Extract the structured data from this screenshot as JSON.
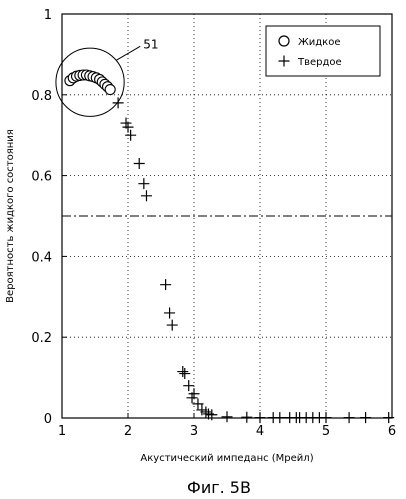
{
  "chart_data": {
    "type": "scatter",
    "figure_caption": "Фиг. 5B",
    "xlabel": "Акустический импеданс (Мрейл)",
    "ylabel": "Вероятность жидкого состояния",
    "xlim": [
      1,
      6
    ],
    "ylim": [
      0,
      1
    ],
    "x_ticks": [
      1,
      2,
      3,
      4,
      5,
      6
    ],
    "y_ticks": [
      0,
      0.2,
      0.4,
      0.6,
      0.8,
      1
    ],
    "x_tick_labels": [
      "1",
      "2",
      "3",
      "4",
      "5",
      "6"
    ],
    "y_tick_labels": [
      "0",
      "0.2",
      "0.4",
      "0.6",
      "0.8",
      "1"
    ],
    "grid": true,
    "legend_position": "top-right",
    "threshold_line": {
      "y": 0.5,
      "style": "dash-dot"
    },
    "annotation": {
      "label": "51",
      "target": "Жидкое"
    },
    "series": [
      {
        "name": "Жидкое",
        "marker": "circle",
        "points": [
          [
            1.12,
            0.835
          ],
          [
            1.17,
            0.842
          ],
          [
            1.22,
            0.846
          ],
          [
            1.27,
            0.848
          ],
          [
            1.32,
            0.849
          ],
          [
            1.37,
            0.849
          ],
          [
            1.42,
            0.847
          ],
          [
            1.47,
            0.845
          ],
          [
            1.52,
            0.842
          ],
          [
            1.57,
            0.838
          ],
          [
            1.61,
            0.832
          ],
          [
            1.65,
            0.826
          ],
          [
            1.69,
            0.82
          ],
          [
            1.73,
            0.813
          ]
        ]
      },
      {
        "name": "Твердое",
        "marker": "plus",
        "points": [
          [
            1.85,
            0.78
          ],
          [
            1.97,
            0.73
          ],
          [
            2.0,
            0.72
          ],
          [
            2.04,
            0.7
          ],
          [
            2.17,
            0.63
          ],
          [
            2.24,
            0.58
          ],
          [
            2.28,
            0.55
          ],
          [
            2.57,
            0.33
          ],
          [
            2.63,
            0.26
          ],
          [
            2.67,
            0.23
          ],
          [
            2.83,
            0.115
          ],
          [
            2.86,
            0.11
          ],
          [
            2.92,
            0.08
          ],
          [
            2.97,
            0.05
          ],
          [
            3.0,
            0.06
          ],
          [
            3.06,
            0.035
          ],
          [
            3.12,
            0.02
          ],
          [
            3.18,
            0.015
          ],
          [
            3.22,
            0.01
          ],
          [
            3.27,
            0.008
          ],
          [
            3.5,
            0.003
          ],
          [
            3.8,
            0.002
          ],
          [
            4.0,
            0.001
          ],
          [
            4.2,
            0.001
          ],
          [
            4.3,
            0.001
          ],
          [
            4.45,
            0.001
          ],
          [
            4.55,
            0.001
          ],
          [
            4.6,
            0.001
          ],
          [
            4.7,
            0.001
          ],
          [
            4.8,
            0.001
          ],
          [
            4.9,
            0.001
          ],
          [
            5.0,
            0.001
          ],
          [
            5.35,
            0.001
          ],
          [
            5.6,
            0.001
          ],
          [
            5.95,
            0.001
          ]
        ]
      }
    ]
  }
}
